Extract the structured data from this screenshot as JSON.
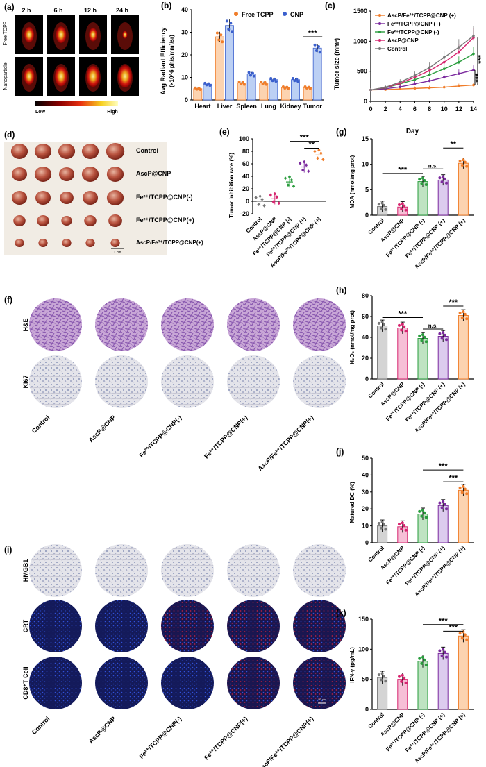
{
  "panel_labels": {
    "a": "(a)",
    "b": "(b)",
    "c": "(c)",
    "d": "(d)",
    "e": "(e)",
    "f": "(f)",
    "g": "(g)",
    "h": "(h)",
    "i": "(i)",
    "j": "(j)",
    "k": "(k)"
  },
  "imaging": {
    "times": [
      "2 h",
      "6 h",
      "12 h",
      "24 h"
    ],
    "rows": [
      "Free TCPP",
      "Nanoparticle"
    ],
    "scale_low": "Low",
    "scale_high": "High"
  },
  "tumor_photos": {
    "groups": [
      "Control",
      "AscP@CNP",
      "Fe²⁺/TCPP@CNP(-)",
      "Fe²⁺/TCPP@CNP(+)",
      "AscP/Fe²⁺/TCPP@CNP(+)"
    ],
    "scalebar": "1 cm"
  },
  "histology_f": {
    "rows": [
      "H&E",
      "Ki67"
    ],
    "groups": [
      "Control",
      "AscP@CNP",
      "Fe²⁺/TCPP@CNP(-)",
      "Fe²⁺/TCPP@CNP(+)",
      "AscP/Fe²⁺/TCPP@CNP(+)"
    ]
  },
  "histology_i": {
    "rows": [
      "HMGB1",
      "CRT",
      "CD8⁺T Cell"
    ],
    "groups": [
      "Control",
      "AscP@CNP",
      "Fe²⁺/TCPP@CNP(-)",
      "Fe²⁺/TCPP@CNP(+)",
      "AscP/Fe²⁺/TCPP@CNP(+)"
    ],
    "scalebar": "50 μm"
  },
  "colors": {
    "orange": "#f07d2a",
    "blue": "#3a5fcd",
    "purple": "#7b2a9e",
    "green": "#2a9d3e",
    "magenta": "#d6246e",
    "gray": "#777777",
    "fill_gray": "#d4d4d4",
    "fill_pink": "#f6bfd6",
    "fill_green": "#bfe3c2",
    "fill_purple": "#dccbee",
    "fill_orange": "#fcd3b0"
  },
  "chart_data": [
    {
      "id": "b",
      "type": "bar",
      "ylabel": "Avg Radiant Efficiency",
      "ylabel2": "(×10^6 ph/s/mm²/sr)",
      "categories": [
        "Heart",
        "Liver",
        "Spleen",
        "Lung",
        "Kidney",
        "Tumor"
      ],
      "series": [
        {
          "name": "Free TCPP",
          "values": [
            5,
            28,
            7.5,
            7.5,
            5.5,
            5.5
          ]
        },
        {
          "name": "CNP",
          "values": [
            7,
            33,
            11.5,
            9,
            9,
            23
          ]
        }
      ],
      "ylim": [
        0,
        40
      ],
      "yticks": [
        0,
        10,
        20,
        30,
        40
      ],
      "annotations": [
        "***"
      ]
    },
    {
      "id": "c",
      "type": "line",
      "xlabel": "Day",
      "ylabel": "Tumor size (mm³)",
      "x": [
        0,
        2,
        4,
        6,
        8,
        10,
        12,
        14
      ],
      "xlim": [
        0,
        14
      ],
      "ylim": [
        0,
        1500
      ],
      "yticks": [
        0,
        500,
        1000,
        1500
      ],
      "series": [
        {
          "name": "AscP/Fe²⁺/TCPP@CNP (+)",
          "values": [
            190,
            195,
            205,
            215,
            225,
            235,
            255,
            270
          ]
        },
        {
          "name": "Fe²⁺/TCPP@CNP (+)",
          "values": [
            190,
            210,
            240,
            290,
            340,
            400,
            460,
            520
          ]
        },
        {
          "name": "Fe²⁺/TCPP@CNP (-)",
          "values": [
            190,
            225,
            290,
            360,
            440,
            540,
            650,
            790
          ]
        },
        {
          "name": "AscP@CNP",
          "values": [
            190,
            230,
            300,
            400,
            510,
            650,
            820,
            1060
          ]
        },
        {
          "name": "Control",
          "values": [
            190,
            235,
            320,
            430,
            560,
            730,
            900,
            1090
          ]
        }
      ],
      "annotations": [
        "***",
        "***"
      ]
    },
    {
      "id": "e",
      "type": "scatter",
      "ylabel": "Tumor inhibition rate (%)",
      "categories": [
        "Control",
        "AscP@CNP",
        "Fe²⁺/TCPP@CNP (-)",
        "Fe²⁺/TCPP@CNP (+)",
        "AscP/Fe²⁺/TCPP@CNP (+)"
      ],
      "values": [
        0,
        4,
        31,
        55,
        74
      ],
      "ylim": [
        -20,
        100
      ],
      "yticks": [
        -20,
        0,
        20,
        40,
        60,
        80,
        100
      ],
      "annotations": [
        "***",
        "**"
      ]
    },
    {
      "id": "g",
      "type": "bar",
      "ylabel": "MDA (nmol/mg prot)",
      "categories": [
        "Control",
        "AscP@CNP",
        "Fe²⁺/TCPP@CNP (-)",
        "Fe²⁺/TCPP@CNP (+)",
        "AscP/Fe²⁺/TCPP@CNP (+)"
      ],
      "values": [
        1.7,
        1.6,
        6.6,
        6.9,
        10.2
      ],
      "ylim": [
        0,
        15
      ],
      "yticks": [
        0,
        5,
        10,
        15
      ],
      "annotations": [
        "***",
        "n.s.",
        "**"
      ]
    },
    {
      "id": "h",
      "type": "bar",
      "ylabel": "H₂O₂ (nmol/mg prot)",
      "categories": [
        "Control",
        "AscP@CNP",
        "Fe²⁺/TCPP@CNP (-)",
        "Fe²⁺/TCPP@CNP (+)",
        "AscP/Fe²⁺/TCPP@CNP (+)"
      ],
      "values": [
        51,
        49,
        39,
        41,
        61
      ],
      "ylim": [
        0,
        80
      ],
      "yticks": [
        0,
        20,
        40,
        60,
        80
      ],
      "annotations": [
        "***",
        "n.s.",
        "***"
      ]
    },
    {
      "id": "j",
      "type": "bar",
      "ylabel": "Matured DC (%)",
      "categories": [
        "Control",
        "AscP@CNP",
        "Fe²⁺/TCPP@CNP (-)",
        "Fe²⁺/TCPP@CNP (+)",
        "AscP/Fe²⁺/TCPP@CNP (+)"
      ],
      "values": [
        10,
        9.5,
        17,
        22,
        31
      ],
      "ylim": [
        0,
        50
      ],
      "yticks": [
        0,
        10,
        20,
        30,
        40,
        50
      ],
      "annotations": [
        "***",
        "***"
      ]
    },
    {
      "id": "k",
      "type": "bar",
      "ylabel": "IFN-γ (pg/mL)",
      "categories": [
        "Control",
        "AscP@CNP",
        "Fe²⁺/TCPP@CNP (-)",
        "Fe²⁺/TCPP@CNP (+)",
        "AscP/Fe²⁺/TCPP@CNP (+)"
      ],
      "values": [
        53,
        50,
        80,
        93,
        122
      ],
      "ylim": [
        0,
        150
      ],
      "yticks": [
        0,
        50,
        100,
        150
      ],
      "annotations": [
        "***",
        "***"
      ]
    }
  ]
}
